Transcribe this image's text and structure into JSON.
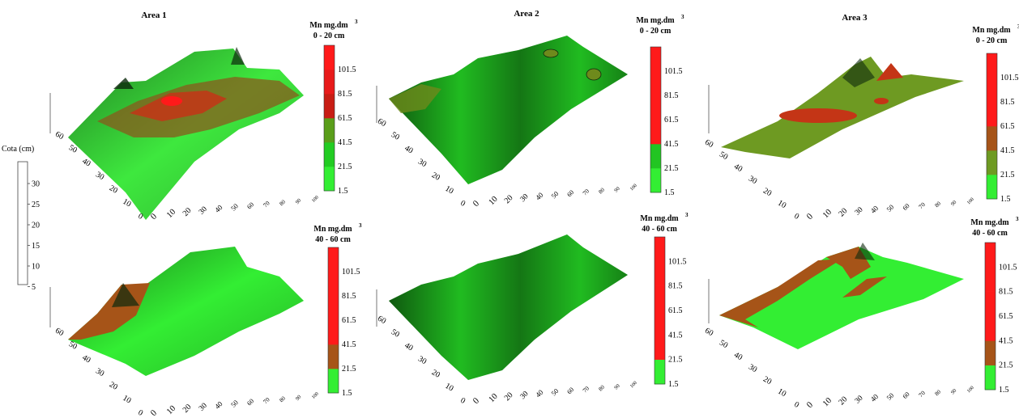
{
  "chart_data": {
    "type": "surface-3d",
    "cota_scale": {
      "title": "Cota (cm)",
      "ticks": [
        "30",
        "25",
        "20",
        "15",
        "10",
        "5"
      ]
    },
    "legend_bins": [
      "1.5",
      "21.5",
      "41.5",
      "61.5",
      "81.5",
      "101.5"
    ],
    "axis_ticks": {
      "front": [
        "0",
        "10",
        "20",
        "30",
        "40",
        "50",
        "60",
        "70",
        "80",
        "90",
        "100"
      ],
      "left": [
        "0",
        "10",
        "20",
        "30",
        "40",
        "50",
        "60"
      ]
    },
    "panels": [
      {
        "title": "Area 1",
        "legend_title": "Mn mg.dm",
        "legend_sup": "3",
        "depth": "0 - 20 cm"
      },
      {
        "title": "Area 2",
        "legend_title": "Mn mg.dm",
        "legend_sup": "3",
        "depth": "0 - 20 cm"
      },
      {
        "title": "Area 3",
        "legend_title": "Mn mg.dm",
        "legend_sup": "3",
        "depth": "0 - 20 cm"
      },
      {
        "title": "",
        "legend_title": "Mn mg.dm",
        "legend_sup": "3",
        "depth": "40 - 60 cm"
      },
      {
        "title": "",
        "legend_title": "Mn mg.dm",
        "legend_sup": "3",
        "depth": "40 - 60 cm"
      },
      {
        "title": "",
        "legend_title": "Mn mg.dm",
        "legend_sup": "3",
        "depth": "40 - 60 cm"
      }
    ],
    "colors": {
      "bright_green": "#33ee33",
      "green": "#22c522",
      "olive": "#6e8a1c",
      "brown": "#a65418",
      "dark_red": "#c43516",
      "red": "#ff1a1a",
      "shadow": "#0d2a0d"
    }
  }
}
